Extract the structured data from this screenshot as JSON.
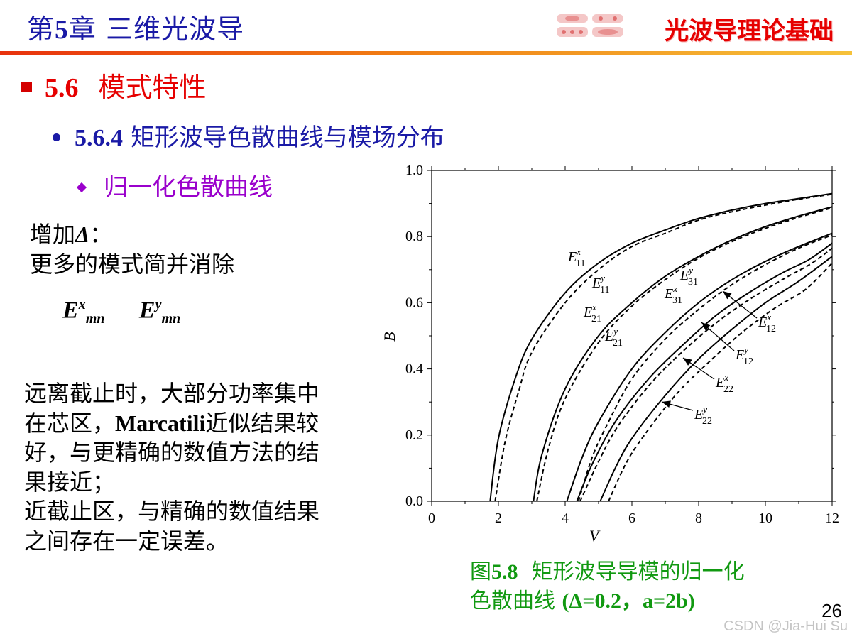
{
  "header": {
    "chapter_prefix": "第",
    "chapter_number": "5",
    "chapter_suffix": "章 三维光波导",
    "brand": "光波导理论基础"
  },
  "section": {
    "number": "5.6",
    "title": "模式特性"
  },
  "subsection": {
    "number": "5.6.4",
    "title": "矩形波导色散曲线与模场分布"
  },
  "subsubsection": {
    "title": "归一化色散曲线"
  },
  "delta_note": {
    "line1_prefix": "增加",
    "line1_symbol": "Δ",
    "line1_suffix": "：",
    "line2": "更多的模式简并消除"
  },
  "mode_labels": [
    {
      "base": "E",
      "sup": "x",
      "sub": "mn"
    },
    {
      "base": "E",
      "sup": "y",
      "sub": "mn"
    }
  ],
  "paragraph": {
    "line1": "远离截止时，大部分功率集中",
    "line2_prefix": "在芯区，",
    "line2_bold": "Marcatili",
    "line2_suffix": "近似结果较",
    "line3": "好，与更精确的数值方法的结",
    "line4": "果接近；",
    "line5": "近截止区，与精确的数值结果",
    "line6": "之间存在一定误差。"
  },
  "caption": {
    "line1_prefix": "图",
    "line1_num": "5.8",
    "line1_text": "矩形波导导模的归一化",
    "line2_text": "色散曲线 ",
    "line2_params": "(Δ=0.2，a=2b)"
  },
  "page_number": "26",
  "watermark": "CSDN @Jia-Hui Su",
  "colors": {
    "header_blue": "#1a1aa6",
    "accent_red": "#e60000",
    "sub_purple": "#9a00cc",
    "caption_green": "#119911"
  },
  "chart_data": {
    "type": "line",
    "xlabel": "V",
    "ylabel": "B",
    "xlim": [
      0,
      12
    ],
    "ylim": [
      0,
      1.0
    ],
    "x_ticks": [
      "0",
      "2",
      "4",
      "6",
      "8",
      "10",
      "12"
    ],
    "y_ticks": [
      "0.0",
      "0.2",
      "0.4",
      "0.6",
      "0.8",
      "1.0"
    ],
    "series": [
      {
        "name": "E11x",
        "style": "solid",
        "points": [
          [
            1.75,
            0
          ],
          [
            2,
            0.19
          ],
          [
            2.5,
            0.37
          ],
          [
            3,
            0.49
          ],
          [
            4,
            0.63
          ],
          [
            5,
            0.72
          ],
          [
            6,
            0.78
          ],
          [
            7,
            0.82
          ],
          [
            8,
            0.855
          ],
          [
            9,
            0.88
          ],
          [
            10,
            0.9
          ],
          [
            11,
            0.915
          ],
          [
            12,
            0.93
          ]
        ]
      },
      {
        "name": "E11y",
        "style": "dashed",
        "points": [
          [
            1.9,
            0
          ],
          [
            2.2,
            0.18
          ],
          [
            2.6,
            0.33
          ],
          [
            3,
            0.45
          ],
          [
            4,
            0.6
          ],
          [
            5,
            0.7
          ],
          [
            6,
            0.77
          ],
          [
            7,
            0.81
          ],
          [
            8,
            0.85
          ],
          [
            9,
            0.875
          ],
          [
            10,
            0.895
          ],
          [
            11,
            0.913
          ],
          [
            12,
            0.928
          ]
        ]
      },
      {
        "name": "E21x",
        "style": "solid",
        "points": [
          [
            3.05,
            0
          ],
          [
            3.3,
            0.14
          ],
          [
            4,
            0.34
          ],
          [
            5,
            0.5
          ],
          [
            6,
            0.6
          ],
          [
            7,
            0.68
          ],
          [
            8,
            0.74
          ],
          [
            9,
            0.79
          ],
          [
            10,
            0.83
          ],
          [
            11,
            0.862
          ],
          [
            12,
            0.89
          ]
        ]
      },
      {
        "name": "E21y",
        "style": "dashed",
        "points": [
          [
            3.15,
            0
          ],
          [
            3.5,
            0.16
          ],
          [
            4,
            0.31
          ],
          [
            5,
            0.48
          ],
          [
            6,
            0.59
          ],
          [
            7,
            0.67
          ],
          [
            8,
            0.735
          ],
          [
            9,
            0.785
          ],
          [
            10,
            0.825
          ],
          [
            11,
            0.858
          ],
          [
            12,
            0.887
          ]
        ]
      },
      {
        "name": "E31x",
        "style": "solid",
        "points": [
          [
            4.05,
            0
          ],
          [
            4.5,
            0.13
          ],
          [
            5,
            0.24
          ],
          [
            6,
            0.4
          ],
          [
            7,
            0.51
          ],
          [
            8,
            0.6
          ],
          [
            9,
            0.67
          ],
          [
            10,
            0.725
          ],
          [
            11,
            0.77
          ],
          [
            12,
            0.81
          ]
        ]
      },
      {
        "name": "E31y",
        "style": "dashed",
        "points": [
          [
            4.4,
            0
          ],
          [
            4.8,
            0.13
          ],
          [
            5.2,
            0.22
          ],
          [
            6,
            0.37
          ],
          [
            7,
            0.49
          ],
          [
            8,
            0.58
          ],
          [
            9,
            0.655
          ],
          [
            10,
            0.715
          ],
          [
            11,
            0.765
          ],
          [
            12,
            0.805
          ]
        ]
      },
      {
        "name": "E12x",
        "style": "solid",
        "points": [
          [
            4.35,
            0
          ],
          [
            4.8,
            0.11
          ],
          [
            5.5,
            0.24
          ],
          [
            6.5,
            0.37
          ],
          [
            7.5,
            0.47
          ],
          [
            8.5,
            0.56
          ],
          [
            9.5,
            0.63
          ],
          [
            10.5,
            0.69
          ],
          [
            11.3,
            0.73
          ],
          [
            12,
            0.78
          ]
        ]
      },
      {
        "name": "E12y",
        "style": "dashed",
        "points": [
          [
            4.45,
            0
          ],
          [
            5,
            0.12
          ],
          [
            5.6,
            0.23
          ],
          [
            6.6,
            0.36
          ],
          [
            7.6,
            0.46
          ],
          [
            8.6,
            0.545
          ],
          [
            9.6,
            0.615
          ],
          [
            10.6,
            0.675
          ],
          [
            11.4,
            0.72
          ],
          [
            12,
            0.765
          ]
        ]
      },
      {
        "name": "E22x",
        "style": "solid",
        "points": [
          [
            5.05,
            0
          ],
          [
            5.5,
            0.1
          ],
          [
            6,
            0.19
          ],
          [
            7,
            0.32
          ],
          [
            8,
            0.43
          ],
          [
            9,
            0.52
          ],
          [
            10,
            0.6
          ],
          [
            11,
            0.665
          ],
          [
            12,
            0.74
          ]
        ]
      },
      {
        "name": "E22y",
        "style": "dashed",
        "points": [
          [
            5.3,
            0
          ],
          [
            5.8,
            0.11
          ],
          [
            6.3,
            0.19
          ],
          [
            7.3,
            0.32
          ],
          [
            8.3,
            0.42
          ],
          [
            9.3,
            0.51
          ],
          [
            10.3,
            0.585
          ],
          [
            11.2,
            0.64
          ],
          [
            12,
            0.72
          ]
        ]
      }
    ],
    "annotations": [
      {
        "mode": "E",
        "sup": "x",
        "sub": "11"
      },
      {
        "mode": "E",
        "sup": "y",
        "sub": "11"
      },
      {
        "mode": "E",
        "sup": "x",
        "sub": "21"
      },
      {
        "mode": "E",
        "sup": "y",
        "sub": "21"
      },
      {
        "mode": "E",
        "sup": "y",
        "sub": "31"
      },
      {
        "mode": "E",
        "sup": "x",
        "sub": "31"
      },
      {
        "mode": "E",
        "sup": "x",
        "sub": "12"
      },
      {
        "mode": "E",
        "sup": "y",
        "sub": "12"
      },
      {
        "mode": "E",
        "sup": "x",
        "sub": "22"
      },
      {
        "mode": "E",
        "sup": "y",
        "sub": "22"
      }
    ]
  }
}
